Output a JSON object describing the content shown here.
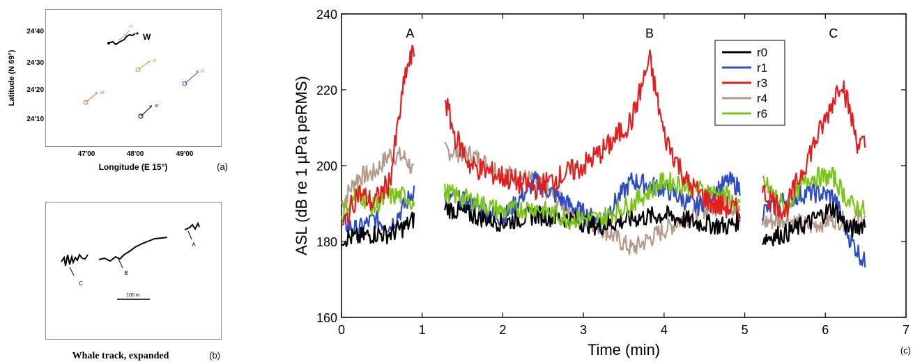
{
  "colors": {
    "r0": "#000000",
    "r1": "#2b4cc4",
    "r3": "#e21f1f",
    "r4": "#b39a8c",
    "r6": "#7cc41a"
  },
  "panel_a": {
    "xlabel": "Longitude (E 15°)",
    "ylabel": "Latitude (N 69°)",
    "xticks": [
      "47'00",
      "48'00",
      "49'00"
    ],
    "yticks": [
      "24'40",
      "24'30",
      "24'20",
      "24'10"
    ],
    "whale_label": "W",
    "receivers": [
      {
        "id": "r0",
        "label": "r0"
      },
      {
        "id": "r1",
        "label": "r1"
      },
      {
        "id": "r3",
        "label": "r3"
      },
      {
        "id": "r4",
        "label": "r4"
      },
      {
        "id": "r6",
        "label": "r6"
      }
    ],
    "tag": "(a)"
  },
  "panel_b": {
    "title": "Whale track, expanded",
    "scale_label": "100 m",
    "point_labels": [
      "A",
      "B",
      "C"
    ],
    "tag": "(b)"
  },
  "chart_data": {
    "type": "line",
    "title": "",
    "xlabel": "Time (min)",
    "ylabel": "ASL (dB re 1 µPa peRMS)",
    "xlim": [
      0,
      7
    ],
    "ylim": [
      160,
      240
    ],
    "xticks": [
      "0",
      "1",
      "2",
      "3",
      "4",
      "5",
      "6",
      "7"
    ],
    "yticks": [
      "160",
      "180",
      "200",
      "220",
      "240"
    ],
    "grid": false,
    "legend_position": "top-right",
    "annotations": [
      {
        "text": "A",
        "x": 0.85
      },
      {
        "text": "B",
        "x": 3.82
      },
      {
        "text": "C",
        "x": 6.1
      }
    ],
    "segments": [
      [
        0,
        0.92
      ],
      [
        1.28,
        4.97
      ],
      [
        5.22,
        6.55
      ]
    ],
    "series": [
      {
        "name": "r0",
        "x": [
          0,
          0.2,
          0.4,
          0.6,
          0.8,
          0.9,
          1.28,
          1.6,
          2.0,
          2.4,
          2.8,
          3.2,
          3.6,
          4.0,
          4.4,
          4.8,
          4.95,
          5.22,
          5.5,
          5.8,
          6.1,
          6.3,
          6.5
        ],
        "values": [
          181,
          181,
          182,
          182,
          184,
          186,
          189,
          187,
          185,
          187,
          186,
          184,
          186,
          187,
          185,
          184,
          186,
          181,
          182,
          185,
          189,
          183,
          185
        ]
      },
      {
        "name": "r1",
        "x": [
          0,
          0.2,
          0.4,
          0.6,
          0.8,
          0.9,
          1.28,
          1.6,
          2.0,
          2.4,
          2.8,
          3.2,
          3.6,
          4.0,
          4.4,
          4.8,
          4.95,
          5.22,
          5.5,
          5.8,
          6.1,
          6.3,
          6.5
        ],
        "values": [
          185,
          183,
          186,
          184,
          190,
          194,
          192,
          190,
          186,
          196,
          190,
          185,
          196,
          194,
          189,
          196,
          194,
          188,
          191,
          193,
          192,
          181,
          174
        ]
      },
      {
        "name": "r3",
        "x": [
          0,
          0.2,
          0.4,
          0.6,
          0.8,
          0.9,
          1.28,
          1.4,
          1.6,
          2.0,
          2.4,
          2.8,
          3.0,
          3.3,
          3.6,
          3.82,
          4.0,
          4.3,
          4.6,
          4.95,
          5.22,
          5.5,
          5.8,
          6.0,
          6.2,
          6.4,
          6.5
        ],
        "values": [
          183,
          193,
          190,
          196,
          225,
          230,
          218,
          208,
          200,
          197,
          194,
          198,
          200,
          205,
          212,
          228,
          208,
          195,
          190,
          188,
          193,
          188,
          203,
          212,
          223,
          206,
          205
        ]
      },
      {
        "name": "r4",
        "x": [
          0,
          0.2,
          0.4,
          0.6,
          0.8,
          0.9,
          1.28,
          1.6,
          2.0,
          2.4,
          2.8,
          3.2,
          3.6,
          4.0,
          4.4,
          4.8,
          4.95,
          5.22,
          5.5,
          5.8,
          6.1,
          6.3,
          6.5
        ],
        "values": [
          190,
          197,
          198,
          203,
          202,
          198,
          204,
          203,
          198,
          196,
          189,
          184,
          178,
          183,
          188,
          190,
          187,
          185,
          186,
          184,
          186,
          185,
          187
        ]
      },
      {
        "name": "r6",
        "x": [
          0,
          0.2,
          0.4,
          0.6,
          0.8,
          0.9,
          1.28,
          1.6,
          2.0,
          2.4,
          2.8,
          3.2,
          3.6,
          4.0,
          4.4,
          4.8,
          4.95,
          5.22,
          5.5,
          5.8,
          6.1,
          6.3,
          6.5
        ],
        "values": [
          187,
          193,
          189,
          192,
          192,
          190,
          193,
          191,
          188,
          189,
          186,
          186,
          190,
          196,
          194,
          192,
          188,
          196,
          189,
          197,
          197,
          190,
          188
        ]
      }
    ]
  },
  "panel_c_tag": "(c)"
}
